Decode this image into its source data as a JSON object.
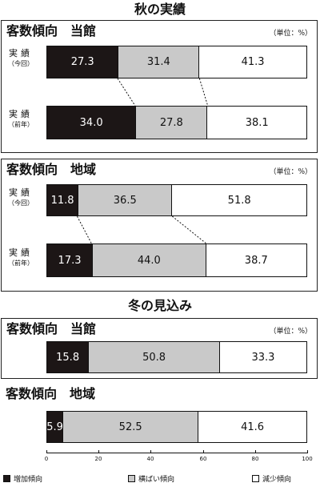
{
  "headings": {
    "autumn": "秋の実績",
    "winter": "冬の見込み"
  },
  "panels": [
    {
      "title": "客数傾向　当館",
      "unit": "（単位：%）"
    },
    {
      "title": "客数傾向　地域",
      "unit": "（単位：%）"
    },
    {
      "title": "客数傾向　当館",
      "unit": "（単位：%）"
    },
    {
      "title": "客数傾向　地域",
      "unit": ""
    }
  ],
  "row_labels": {
    "current_l1": "実績",
    "current_l2": "（今回）",
    "previous_l1": "実績",
    "previous_l2": "（前年）"
  },
  "colors": {
    "increase": "#1c1616",
    "flat": "#c9c9c9",
    "decrease": "#ffffff"
  },
  "chart_data": [
    {
      "type": "bar",
      "stacked": true,
      "orientation": "horizontal",
      "title": "客数傾向　当館",
      "section": "秋の実績",
      "unit": "（単位：%）",
      "categories": [
        "実績（今回）",
        "実績（前年）"
      ],
      "series": [
        {
          "name": "増加傾向",
          "values": [
            27.3,
            34.0
          ]
        },
        {
          "name": "横ばい傾向",
          "values": [
            31.4,
            27.8
          ]
        },
        {
          "name": "減少傾向",
          "values": [
            41.3,
            38.1
          ]
        }
      ],
      "xlim": [
        0,
        100
      ]
    },
    {
      "type": "bar",
      "stacked": true,
      "orientation": "horizontal",
      "title": "客数傾向　地域",
      "section": "秋の実績",
      "unit": "（単位：%）",
      "categories": [
        "実績（今回）",
        "実績（前年）"
      ],
      "series": [
        {
          "name": "増加傾向",
          "values": [
            11.8,
            17.3
          ]
        },
        {
          "name": "横ばい傾向",
          "values": [
            36.5,
            44.0
          ]
        },
        {
          "name": "減少傾向",
          "values": [
            51.8,
            38.7
          ]
        }
      ],
      "xlim": [
        0,
        100
      ]
    },
    {
      "type": "bar",
      "stacked": true,
      "orientation": "horizontal",
      "title": "客数傾向　当館",
      "section": "冬の見込み",
      "unit": "（単位：%）",
      "categories": [
        ""
      ],
      "series": [
        {
          "name": "増加傾向",
          "values": [
            15.8
          ]
        },
        {
          "name": "横ばい傾向",
          "values": [
            50.8
          ]
        },
        {
          "name": "減少傾向",
          "values": [
            33.3
          ]
        }
      ],
      "xlim": [
        0,
        100
      ]
    },
    {
      "type": "bar",
      "stacked": true,
      "orientation": "horizontal",
      "title": "客数傾向　地域",
      "section": "冬の見込み",
      "unit": "",
      "categories": [
        ""
      ],
      "series": [
        {
          "name": "増加傾向",
          "values": [
            5.9
          ]
        },
        {
          "name": "横ばい傾向",
          "values": [
            52.5
          ]
        },
        {
          "name": "減少傾向",
          "values": [
            41.6
          ]
        }
      ],
      "xlim": [
        0,
        100
      ],
      "xticks": [
        "0",
        "20",
        "40",
        "60",
        "80",
        "100"
      ]
    }
  ],
  "legend": [
    "増加傾向",
    "横ばい傾向",
    "減少傾向"
  ]
}
